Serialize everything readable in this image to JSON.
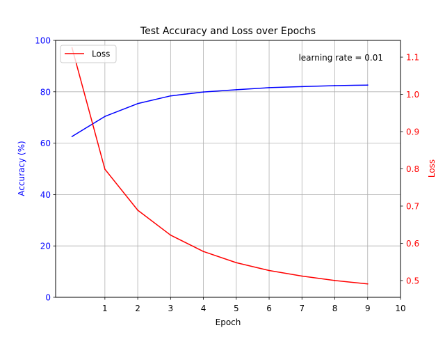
{
  "chart_data": {
    "type": "line",
    "title": "Test Accuracy and Loss over Epochs",
    "xlabel": "Epoch",
    "ylabel_left": "Accuracy (%)",
    "ylabel_right": "Loss",
    "xlim": [
      -0.5,
      10
    ],
    "ylim_left": [
      0,
      100
    ],
    "ylim_right": [
      0.455,
      1.145
    ],
    "xticks": [
      1,
      2,
      3,
      4,
      5,
      6,
      7,
      8,
      9,
      10
    ],
    "yticks_left": [
      0,
      20,
      40,
      60,
      80,
      100
    ],
    "yticks_right": [
      0.5,
      0.6,
      0.7,
      0.8,
      0.9,
      1.0,
      1.1
    ],
    "grid": true,
    "legend": {
      "location": "upper-left",
      "entries": [
        "Loss"
      ]
    },
    "annotation": "learning rate = 0.01",
    "series": [
      {
        "axis": "left",
        "color": "#0000ff",
        "x": [
          0,
          1,
          2,
          3,
          4,
          5,
          6,
          7,
          8,
          9
        ],
        "values": [
          62.6,
          70.4,
          75.4,
          78.4,
          79.9,
          80.8,
          81.6,
          82.0,
          82.4,
          82.6
        ]
      },
      {
        "name": "Loss",
        "axis": "right",
        "color": "#ff0000",
        "x": [
          0,
          1,
          2,
          3,
          4,
          5,
          6,
          7,
          8,
          9
        ],
        "values": [
          1.125,
          0.799,
          0.689,
          0.622,
          0.578,
          0.548,
          0.527,
          0.512,
          0.5,
          0.491
        ]
      }
    ]
  }
}
